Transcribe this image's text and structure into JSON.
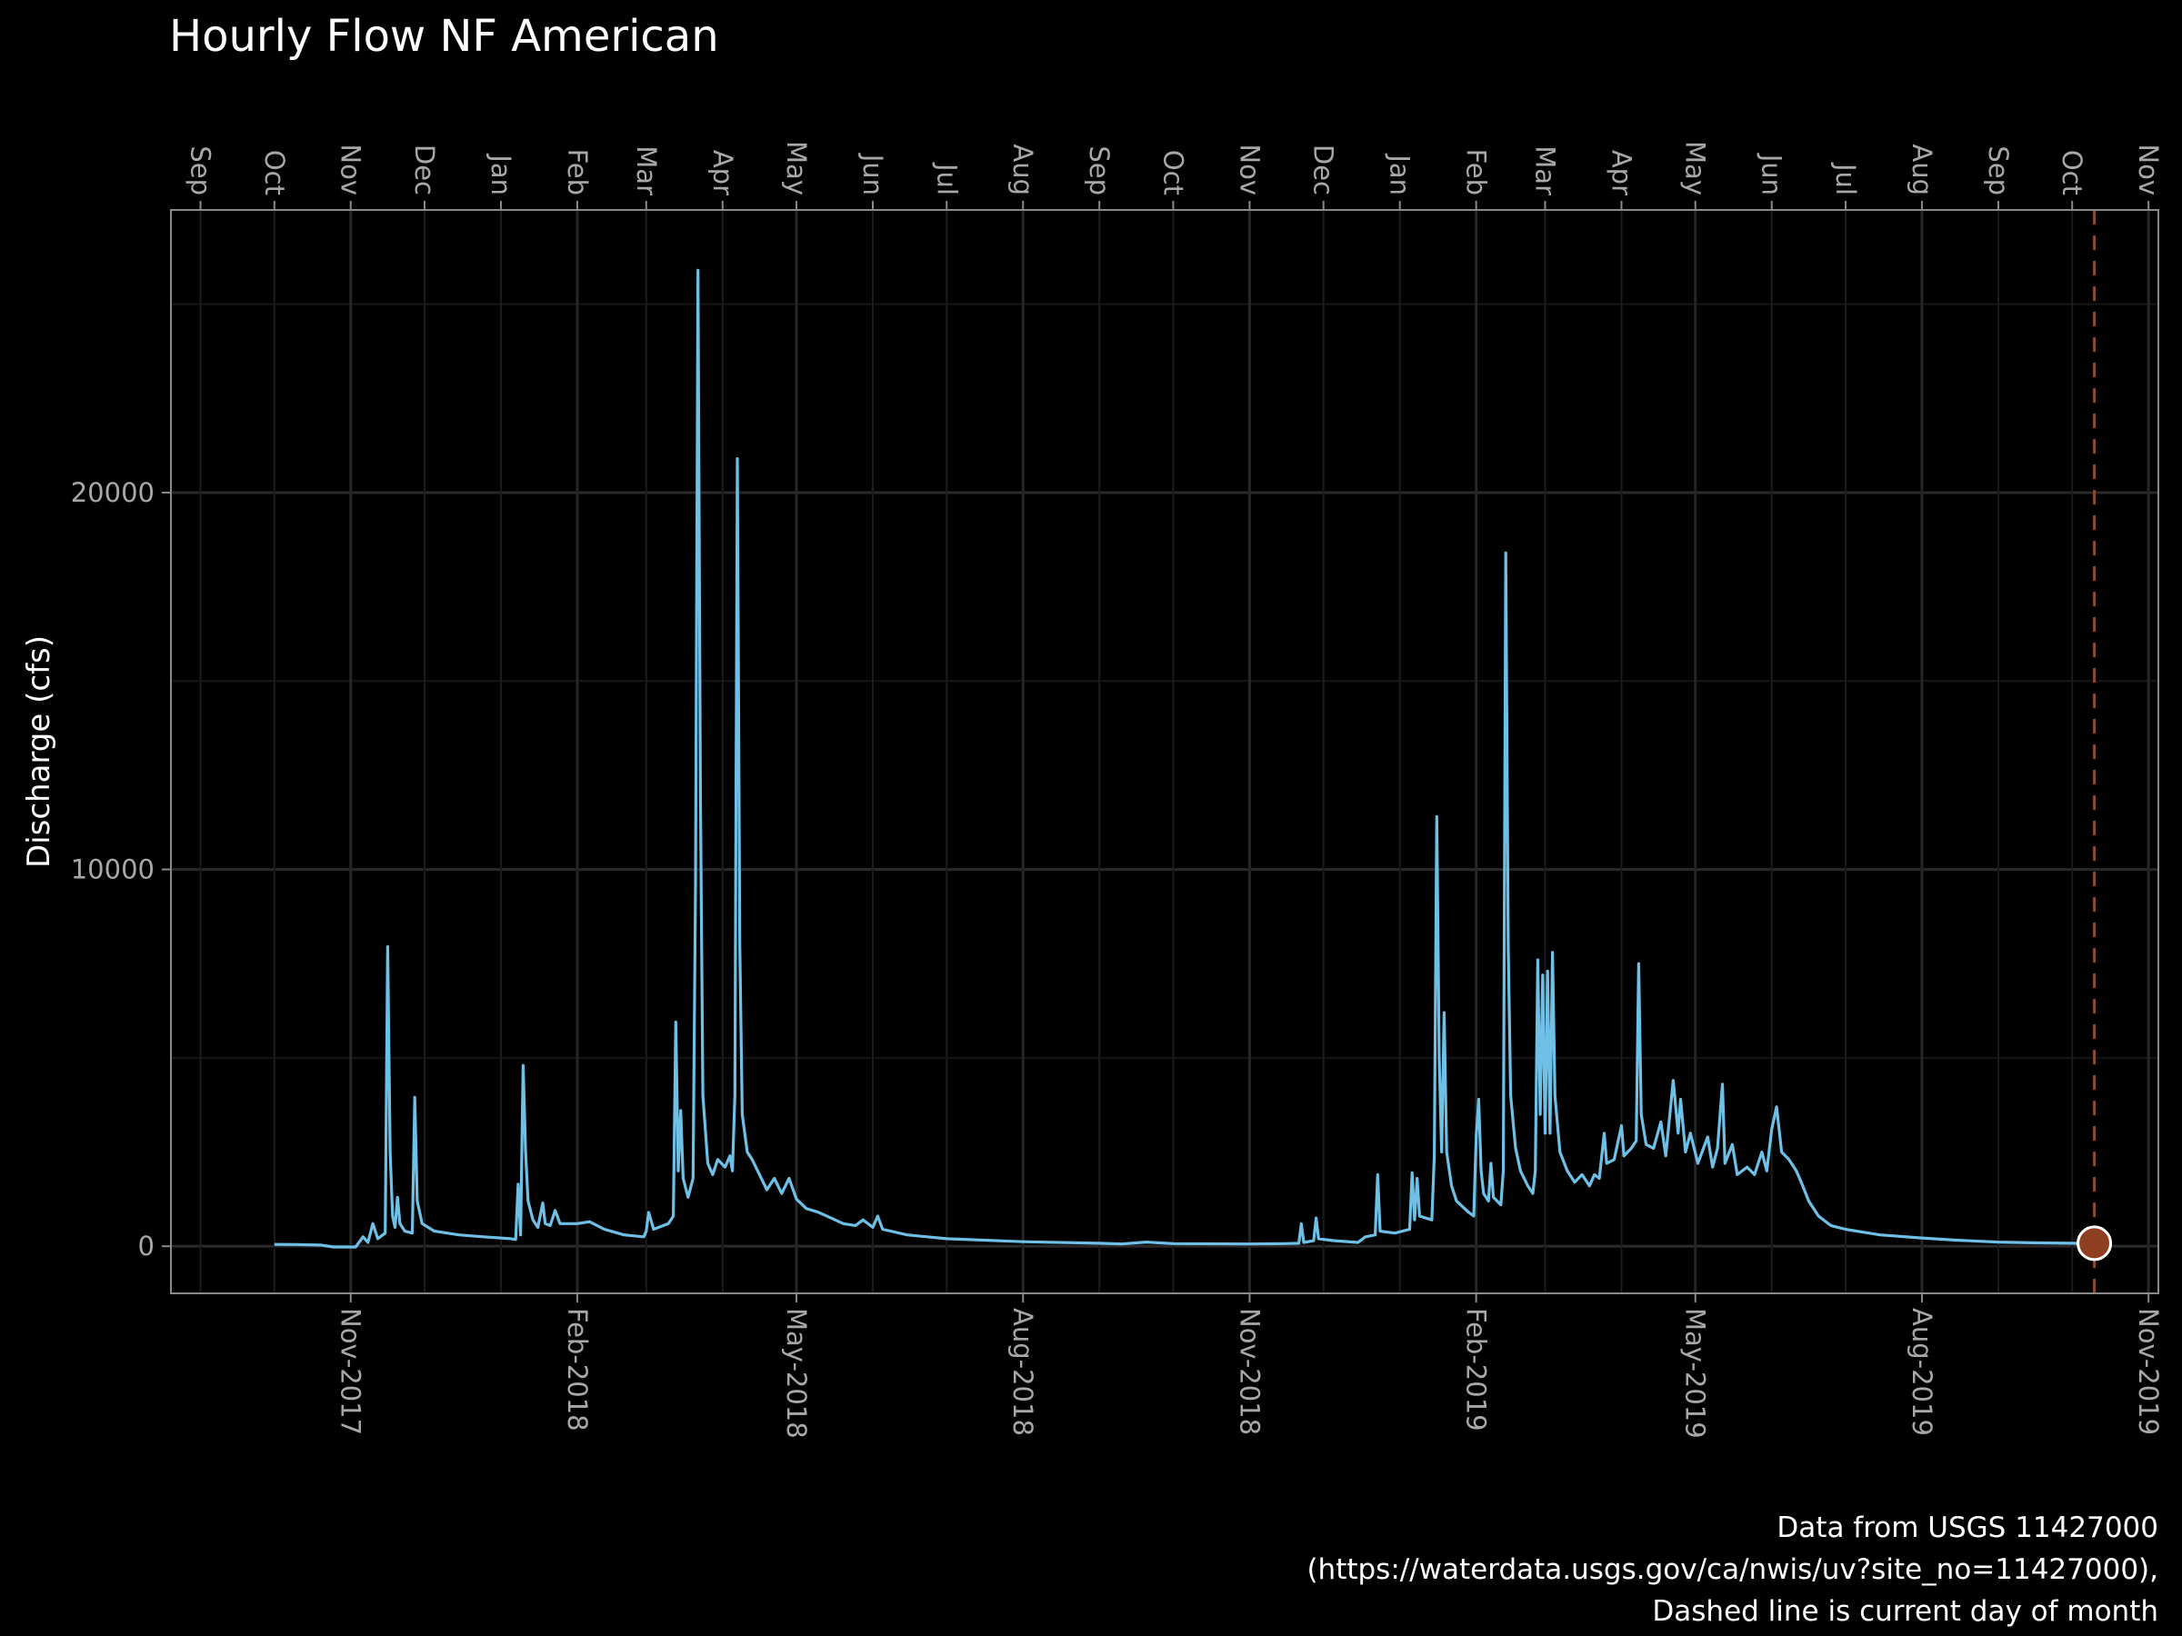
{
  "chart_data": {
    "type": "line",
    "title": "Hourly Flow NF American",
    "ylabel": "Discharge (cfs)",
    "xlabel": "",
    "caption": [
      "Data from USGS 11427000",
      "(https://waterdata.usgs.gov/ca/nwis/uv?site_no=11427000),",
      "Dashed line is current day of month"
    ],
    "x_range": [
      "2017-08-20",
      "2019-11-05"
    ],
    "ylim": [
      -1250,
      27500
    ],
    "y_ticks": [
      0,
      10000,
      20000
    ],
    "y_tick_labels": [
      "0",
      "10000",
      "20000"
    ],
    "x_ticks_bottom": [
      {
        "date": "2017-11-01",
        "label": "Nov-2017"
      },
      {
        "date": "2018-02-01",
        "label": "Feb-2018"
      },
      {
        "date": "2018-05-01",
        "label": "May-2018"
      },
      {
        "date": "2018-08-01",
        "label": "Aug-2018"
      },
      {
        "date": "2018-11-01",
        "label": "Nov-2018"
      },
      {
        "date": "2019-02-01",
        "label": "Feb-2019"
      },
      {
        "date": "2019-05-01",
        "label": "May-2019"
      },
      {
        "date": "2019-08-01",
        "label": "Aug-2019"
      },
      {
        "date": "2019-11-01",
        "label": "Nov-2019"
      }
    ],
    "x_ticks_top": [
      {
        "date": "2017-09-01",
        "label": "Sep"
      },
      {
        "date": "2017-10-01",
        "label": "Oct"
      },
      {
        "date": "2017-11-01",
        "label": "Nov"
      },
      {
        "date": "2017-12-01",
        "label": "Dec"
      },
      {
        "date": "2018-01-01",
        "label": "Jan"
      },
      {
        "date": "2018-02-01",
        "label": "Feb"
      },
      {
        "date": "2018-03-01",
        "label": "Mar"
      },
      {
        "date": "2018-04-01",
        "label": "Apr"
      },
      {
        "date": "2018-05-01",
        "label": "May"
      },
      {
        "date": "2018-06-01",
        "label": "Jun"
      },
      {
        "date": "2018-07-01",
        "label": "Jul"
      },
      {
        "date": "2018-08-01",
        "label": "Aug"
      },
      {
        "date": "2018-09-01",
        "label": "Sep"
      },
      {
        "date": "2018-10-01",
        "label": "Oct"
      },
      {
        "date": "2018-11-01",
        "label": "Nov"
      },
      {
        "date": "2018-12-01",
        "label": "Dec"
      },
      {
        "date": "2019-01-01",
        "label": "Jan"
      },
      {
        "date": "2019-02-01",
        "label": "Feb"
      },
      {
        "date": "2019-03-01",
        "label": "Mar"
      },
      {
        "date": "2019-04-01",
        "label": "Apr"
      },
      {
        "date": "2019-05-01",
        "label": "May"
      },
      {
        "date": "2019-06-01",
        "label": "Jun"
      },
      {
        "date": "2019-07-01",
        "label": "Jul"
      },
      {
        "date": "2019-08-01",
        "label": "Aug"
      },
      {
        "date": "2019-09-01",
        "label": "Sep"
      },
      {
        "date": "2019-10-01",
        "label": "Oct"
      },
      {
        "date": "2019-11-01",
        "label": "Nov"
      }
    ],
    "grid": true,
    "series": [
      {
        "color": "#6ec0e6",
        "points": [
          [
            "2017-10-01",
            50
          ],
          [
            "2017-10-10",
            45
          ],
          [
            "2017-10-20",
            30
          ],
          [
            "2017-10-25",
            -20
          ],
          [
            "2017-11-03",
            -20
          ],
          [
            "2017-11-06",
            250
          ],
          [
            "2017-11-08",
            100
          ],
          [
            "2017-11-10",
            600
          ],
          [
            "2017-11-12",
            200
          ],
          [
            "2017-11-14",
            300
          ],
          [
            "2017-11-15",
            350
          ],
          [
            "2017-11-16",
            7950
          ],
          [
            "2017-11-17",
            2500
          ],
          [
            "2017-11-18",
            800
          ],
          [
            "2017-11-19",
            500
          ],
          [
            "2017-11-20",
            1300
          ],
          [
            "2017-11-21",
            600
          ],
          [
            "2017-11-23",
            400
          ],
          [
            "2017-11-26",
            350
          ],
          [
            "2017-11-27",
            3950
          ],
          [
            "2017-11-28",
            1200
          ],
          [
            "2017-11-30",
            600
          ],
          [
            "2017-12-05",
            400
          ],
          [
            "2017-12-15",
            300
          ],
          [
            "2017-12-25",
            250
          ],
          [
            "2018-01-05",
            200
          ],
          [
            "2018-01-07",
            180
          ],
          [
            "2018-01-08",
            1650
          ],
          [
            "2018-01-09",
            300
          ],
          [
            "2018-01-10",
            4800
          ],
          [
            "2018-01-11",
            2500
          ],
          [
            "2018-01-12",
            1200
          ],
          [
            "2018-01-14",
            700
          ],
          [
            "2018-01-16",
            500
          ],
          [
            "2018-01-18",
            1150
          ],
          [
            "2018-01-19",
            600
          ],
          [
            "2018-01-21",
            550
          ],
          [
            "2018-01-23",
            950
          ],
          [
            "2018-01-25",
            600
          ],
          [
            "2018-02-01",
            600
          ],
          [
            "2018-02-06",
            650
          ],
          [
            "2018-02-12",
            450
          ],
          [
            "2018-02-20",
            300
          ],
          [
            "2018-02-28",
            250
          ],
          [
            "2018-03-01",
            400
          ],
          [
            "2018-03-02",
            900
          ],
          [
            "2018-03-04",
            450
          ],
          [
            "2018-03-10",
            600
          ],
          [
            "2018-03-12",
            800
          ],
          [
            "2018-03-13",
            5950
          ],
          [
            "2018-03-14",
            2000
          ],
          [
            "2018-03-15",
            3600
          ],
          [
            "2018-03-16",
            1800
          ],
          [
            "2018-03-18",
            1300
          ],
          [
            "2018-03-20",
            1800
          ],
          [
            "2018-03-21",
            9600
          ],
          [
            "2018-03-22",
            25900
          ],
          [
            "2018-03-23",
            12000
          ],
          [
            "2018-03-24",
            4000
          ],
          [
            "2018-03-26",
            2200
          ],
          [
            "2018-03-28",
            1900
          ],
          [
            "2018-03-30",
            2300
          ],
          [
            "2018-04-02",
            2100
          ],
          [
            "2018-04-04",
            2400
          ],
          [
            "2018-04-05",
            2000
          ],
          [
            "2018-04-06",
            4000
          ],
          [
            "2018-04-07",
            20900
          ],
          [
            "2018-04-08",
            8000
          ],
          [
            "2018-04-09",
            3500
          ],
          [
            "2018-04-11",
            2500
          ],
          [
            "2018-04-13",
            2300
          ],
          [
            "2018-04-16",
            1900
          ],
          [
            "2018-04-19",
            1500
          ],
          [
            "2018-04-22",
            1800
          ],
          [
            "2018-04-25",
            1400
          ],
          [
            "2018-04-28",
            1800
          ],
          [
            "2018-05-01",
            1250
          ],
          [
            "2018-05-05",
            1000
          ],
          [
            "2018-05-10",
            900
          ],
          [
            "2018-05-15",
            750
          ],
          [
            "2018-05-20",
            600
          ],
          [
            "2018-05-25",
            550
          ],
          [
            "2018-05-28",
            700
          ],
          [
            "2018-06-01",
            500
          ],
          [
            "2018-06-03",
            800
          ],
          [
            "2018-06-05",
            450
          ],
          [
            "2018-06-15",
            300
          ],
          [
            "2018-07-01",
            200
          ],
          [
            "2018-08-01",
            120
          ],
          [
            "2018-09-01",
            80
          ],
          [
            "2018-09-10",
            60
          ],
          [
            "2018-09-20",
            110
          ],
          [
            "2018-10-01",
            70
          ],
          [
            "2018-11-01",
            60
          ],
          [
            "2018-11-15",
            70
          ],
          [
            "2018-11-21",
            80
          ],
          [
            "2018-11-22",
            600
          ],
          [
            "2018-11-23",
            100
          ],
          [
            "2018-11-27",
            150
          ],
          [
            "2018-11-28",
            750
          ],
          [
            "2018-11-29",
            200
          ],
          [
            "2018-12-05",
            150
          ],
          [
            "2018-12-15",
            100
          ],
          [
            "2018-12-18",
            250
          ],
          [
            "2018-12-22",
            300
          ],
          [
            "2018-12-23",
            1900
          ],
          [
            "2018-12-24",
            400
          ],
          [
            "2018-12-30",
            350
          ],
          [
            "2019-01-05",
            450
          ],
          [
            "2019-01-06",
            1950
          ],
          [
            "2019-01-07",
            700
          ],
          [
            "2019-01-08",
            1800
          ],
          [
            "2019-01-09",
            800
          ],
          [
            "2019-01-14",
            700
          ],
          [
            "2019-01-15",
            2400
          ],
          [
            "2019-01-16",
            11400
          ],
          [
            "2019-01-17",
            5000
          ],
          [
            "2019-01-18",
            2500
          ],
          [
            "2019-01-19",
            6200
          ],
          [
            "2019-01-20",
            2500
          ],
          [
            "2019-01-22",
            1600
          ],
          [
            "2019-01-24",
            1200
          ],
          [
            "2019-01-29",
            900
          ],
          [
            "2019-01-31",
            800
          ],
          [
            "2019-02-01",
            2900
          ],
          [
            "2019-02-02",
            3900
          ],
          [
            "2019-02-03",
            2000
          ],
          [
            "2019-02-04",
            1400
          ],
          [
            "2019-02-06",
            1200
          ],
          [
            "2019-02-07",
            2200
          ],
          [
            "2019-02-08",
            1300
          ],
          [
            "2019-02-11",
            1100
          ],
          [
            "2019-02-12",
            2000
          ],
          [
            "2019-02-13",
            18400
          ],
          [
            "2019-02-14",
            8000
          ],
          [
            "2019-02-15",
            4000
          ],
          [
            "2019-02-17",
            2600
          ],
          [
            "2019-02-19",
            2000
          ],
          [
            "2019-02-22",
            1600
          ],
          [
            "2019-02-24",
            1400
          ],
          [
            "2019-02-25",
            2000
          ],
          [
            "2019-02-26",
            7600
          ],
          [
            "2019-02-27",
            3500
          ],
          [
            "2019-02-28",
            7200
          ],
          [
            "2019-03-01",
            3000
          ],
          [
            "2019-03-02",
            7300
          ],
          [
            "2019-03-03",
            3000
          ],
          [
            "2019-03-04",
            7800
          ],
          [
            "2019-03-05",
            4000
          ],
          [
            "2019-03-07",
            2500
          ],
          [
            "2019-03-10",
            2000
          ],
          [
            "2019-03-13",
            1700
          ],
          [
            "2019-03-16",
            1900
          ],
          [
            "2019-03-19",
            1600
          ],
          [
            "2019-03-21",
            1900
          ],
          [
            "2019-03-23",
            1800
          ],
          [
            "2019-03-25",
            3000
          ],
          [
            "2019-03-26",
            2200
          ],
          [
            "2019-03-29",
            2300
          ],
          [
            "2019-04-01",
            3200
          ],
          [
            "2019-04-02",
            2400
          ],
          [
            "2019-04-05",
            2600
          ],
          [
            "2019-04-07",
            2800
          ],
          [
            "2019-04-08",
            7500
          ],
          [
            "2019-04-09",
            3500
          ],
          [
            "2019-04-11",
            2700
          ],
          [
            "2019-04-14",
            2600
          ],
          [
            "2019-04-17",
            3300
          ],
          [
            "2019-04-19",
            2400
          ],
          [
            "2019-04-22",
            4400
          ],
          [
            "2019-04-24",
            3000
          ],
          [
            "2019-04-25",
            3900
          ],
          [
            "2019-04-27",
            2500
          ],
          [
            "2019-04-29",
            3000
          ],
          [
            "2019-05-02",
            2200
          ],
          [
            "2019-05-06",
            2900
          ],
          [
            "2019-05-08",
            2100
          ],
          [
            "2019-05-10",
            2600
          ],
          [
            "2019-05-12",
            4300
          ],
          [
            "2019-05-13",
            2200
          ],
          [
            "2019-05-16",
            2700
          ],
          [
            "2019-05-18",
            1900
          ],
          [
            "2019-05-22",
            2100
          ],
          [
            "2019-05-25",
            1900
          ],
          [
            "2019-05-28",
            2500
          ],
          [
            "2019-05-30",
            2000
          ],
          [
            "2019-06-01",
            3100
          ],
          [
            "2019-06-03",
            3700
          ],
          [
            "2019-06-05",
            2500
          ],
          [
            "2019-06-08",
            2300
          ],
          [
            "2019-06-11",
            2000
          ],
          [
            "2019-06-13",
            1700
          ],
          [
            "2019-06-16",
            1200
          ],
          [
            "2019-06-20",
            800
          ],
          [
            "2019-06-25",
            550
          ],
          [
            "2019-07-01",
            450
          ],
          [
            "2019-07-15",
            300
          ],
          [
            "2019-08-01",
            220
          ],
          [
            "2019-08-15",
            160
          ],
          [
            "2019-09-01",
            110
          ],
          [
            "2019-09-15",
            90
          ],
          [
            "2019-10-01",
            80
          ],
          [
            "2019-10-06",
            75
          ],
          [
            "2019-10-10",
            80
          ]
        ]
      }
    ],
    "annotations": {
      "current_day_line": {
        "date": "2019-10-10",
        "color": "#8e4a2e",
        "style": "dashed"
      },
      "current_point": {
        "date": "2019-10-10",
        "value": 80,
        "color": "#8e3f22"
      }
    }
  }
}
